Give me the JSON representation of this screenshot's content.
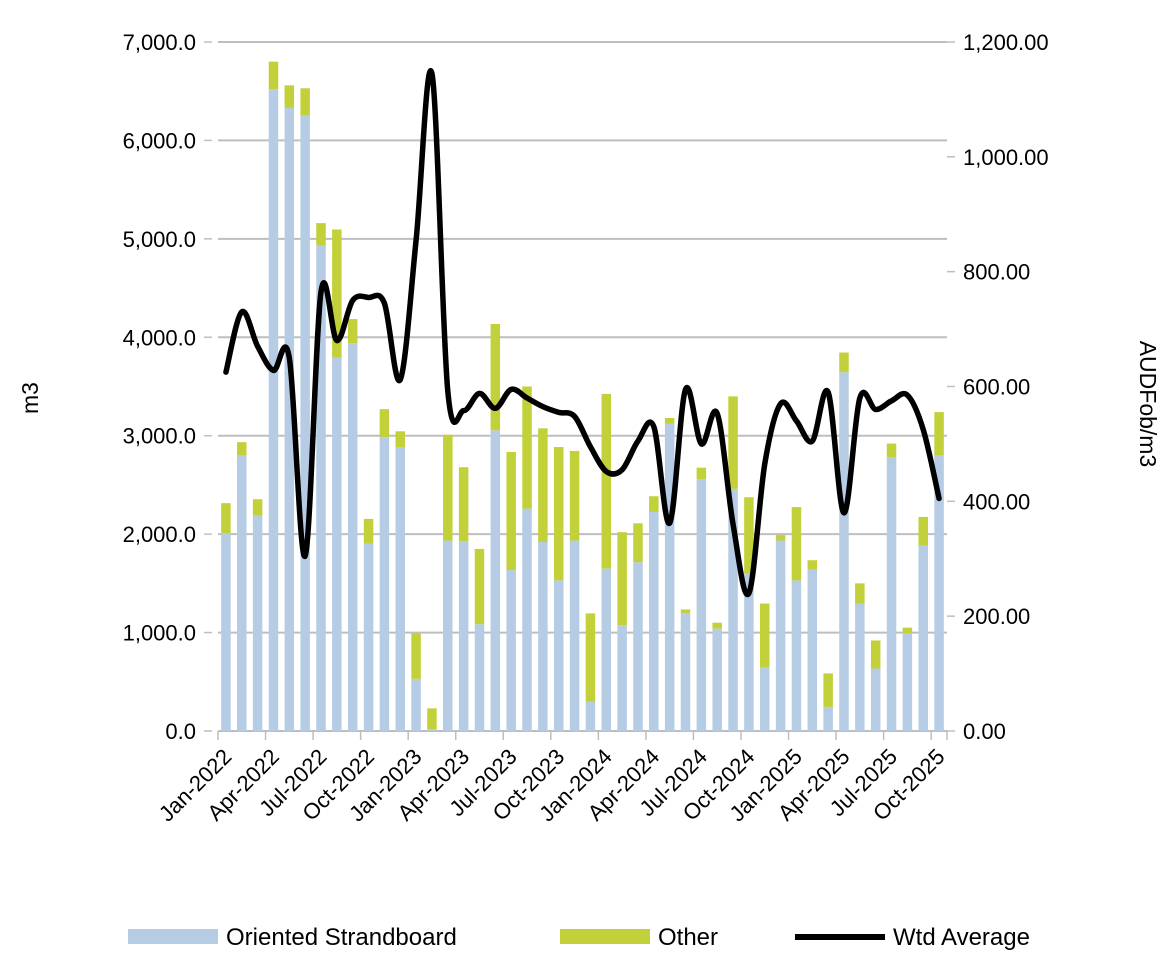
{
  "chart_data": {
    "type": "combo-stacked-bar-line",
    "categories": [
      "Jan-2022",
      "Feb-2022",
      "Mar-2022",
      "Apr-2022",
      "May-2022",
      "Jun-2022",
      "Jul-2022",
      "Aug-2022",
      "Sep-2022",
      "Oct-2022",
      "Nov-2022",
      "Dec-2022",
      "Jan-2023",
      "Feb-2023",
      "Mar-2023",
      "Apr-2023",
      "May-2023",
      "Jun-2023",
      "Jul-2023",
      "Aug-2023",
      "Sep-2023",
      "Oct-2023",
      "Nov-2023",
      "Dec-2023",
      "Jan-2024",
      "Feb-2024",
      "Mar-2024",
      "Apr-2024",
      "May-2024",
      "Jun-2024",
      "Jul-2024",
      "Aug-2024",
      "Sep-2024",
      "Oct-2024",
      "Nov-2024",
      "Dec-2024",
      "Jan-2025",
      "Feb-2025",
      "Mar-2025",
      "Apr-2025",
      "May-2025",
      "Jun-2025",
      "Jul-2025",
      "Aug-2025",
      "Sep-2025",
      "Oct-2025"
    ],
    "x_tick_labels": [
      "Jan-2022",
      "Apr-2022",
      "Jul-2022",
      "Oct-2022",
      "Jan-2023",
      "Apr-2023",
      "Jul-2023",
      "Oct-2023",
      "Jan-2024",
      "Apr-2024",
      "Jul-2024",
      "Oct-2024",
      "Jan-2025",
      "Apr-2025",
      "Jul-2025",
      "Oct-2025"
    ],
    "series": [
      {
        "name": "Oriented Strandboard",
        "type": "bar",
        "axis": "left",
        "color": "#B6CCE4",
        "values": [
          2010,
          2800,
          2190,
          6520,
          6330,
          6250,
          4930,
          3795,
          3940,
          1905,
          2985,
          2885,
          530,
          20,
          1935,
          1930,
          1085,
          3055,
          1635,
          2260,
          1920,
          1530,
          1935,
          300,
          1650,
          1075,
          1715,
          2225,
          3120,
          1195,
          2560,
          1040,
          2460,
          1600,
          650,
          1935,
          1530,
          1640,
          245,
          3645,
          1295,
          635,
          2780,
          990,
          1885,
          2800
        ]
      },
      {
        "name": "Other",
        "type": "bar",
        "axis": "left",
        "color": "#C2D13A",
        "values": [
          305,
          135,
          165,
          280,
          230,
          280,
          230,
          1300,
          245,
          250,
          285,
          160,
          460,
          210,
          1075,
          750,
          765,
          1080,
          1200,
          1240,
          1155,
          1355,
          910,
          895,
          1775,
          945,
          395,
          160,
          60,
          40,
          115,
          60,
          940,
          775,
          645,
          55,
          745,
          95,
          340,
          200,
          205,
          285,
          140,
          60,
          290,
          440
        ]
      },
      {
        "name": "Wtd Average",
        "type": "line",
        "axis": "right",
        "color": "#000000",
        "values": [
          625,
          730,
          670,
          628,
          650,
          305,
          765,
          680,
          750,
          755,
          745,
          612,
          855,
          1145,
          592,
          558,
          588,
          562,
          595,
          580,
          565,
          555,
          548,
          495,
          452,
          455,
          505,
          530,
          362,
          595,
          500,
          553,
          360,
          240,
          465,
          570,
          540,
          505,
          590,
          380,
          580,
          560,
          575,
          585,
          525,
          405
        ]
      }
    ],
    "left_axis": {
      "title": "m3",
      "min": 0,
      "max": 7000,
      "step": 1000,
      "tick_labels": [
        "0.0",
        "1,000.0",
        "2,000.0",
        "3,000.0",
        "4,000.0",
        "5,000.0",
        "6,000.0",
        "7,000.0"
      ]
    },
    "right_axis": {
      "title": "AUDFob/m3",
      "min": 0,
      "max": 1200,
      "step": 200,
      "tick_labels": [
        "0.00",
        "200.00",
        "400.00",
        "600.00",
        "800.00",
        "1,000.00",
        "1,200.00"
      ]
    },
    "legend_position": "bottom",
    "grid": "horizontal",
    "style": {
      "gridline_color": "#BEBEBE",
      "axis_line_color": "#BEBEBE",
      "text_color": "#000000",
      "background": "#FFFFFF",
      "line_width": 5.5,
      "bar_width": 9.5
    }
  }
}
